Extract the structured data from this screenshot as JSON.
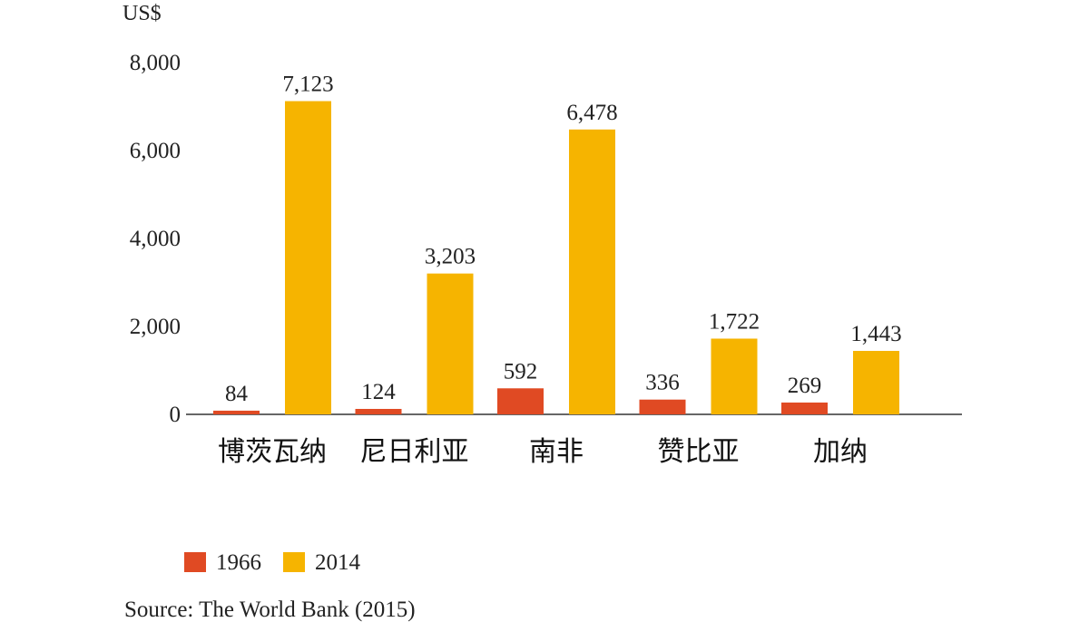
{
  "chart_data": {
    "type": "bar",
    "y_unit_label": "US$",
    "categories": [
      "博茨瓦纳",
      "尼日利亚",
      "南非",
      "赞比亚",
      "加纳"
    ],
    "series": [
      {
        "name": "1966",
        "color": "#e04a23",
        "values": [
          84,
          124,
          592,
          336,
          269
        ]
      },
      {
        "name": "2014",
        "color": "#f6b400",
        "values": [
          7123,
          3203,
          6478,
          1722,
          1443
        ]
      }
    ],
    "data_labels": [
      [
        "84",
        "124",
        "592",
        "336",
        "269"
      ],
      [
        "7,123",
        "3,203",
        "6,478",
        "1,722",
        "1,443"
      ]
    ],
    "y_ticks": [
      0,
      2000,
      4000,
      6000,
      8000
    ],
    "y_tick_labels": [
      "0",
      "2,000",
      "4,000",
      "6,000",
      "8,000"
    ],
    "ylim": [
      0,
      8000
    ],
    "grid": false,
    "legend_position": "bottom-left"
  },
  "source": "Source: The World Bank (2015)"
}
